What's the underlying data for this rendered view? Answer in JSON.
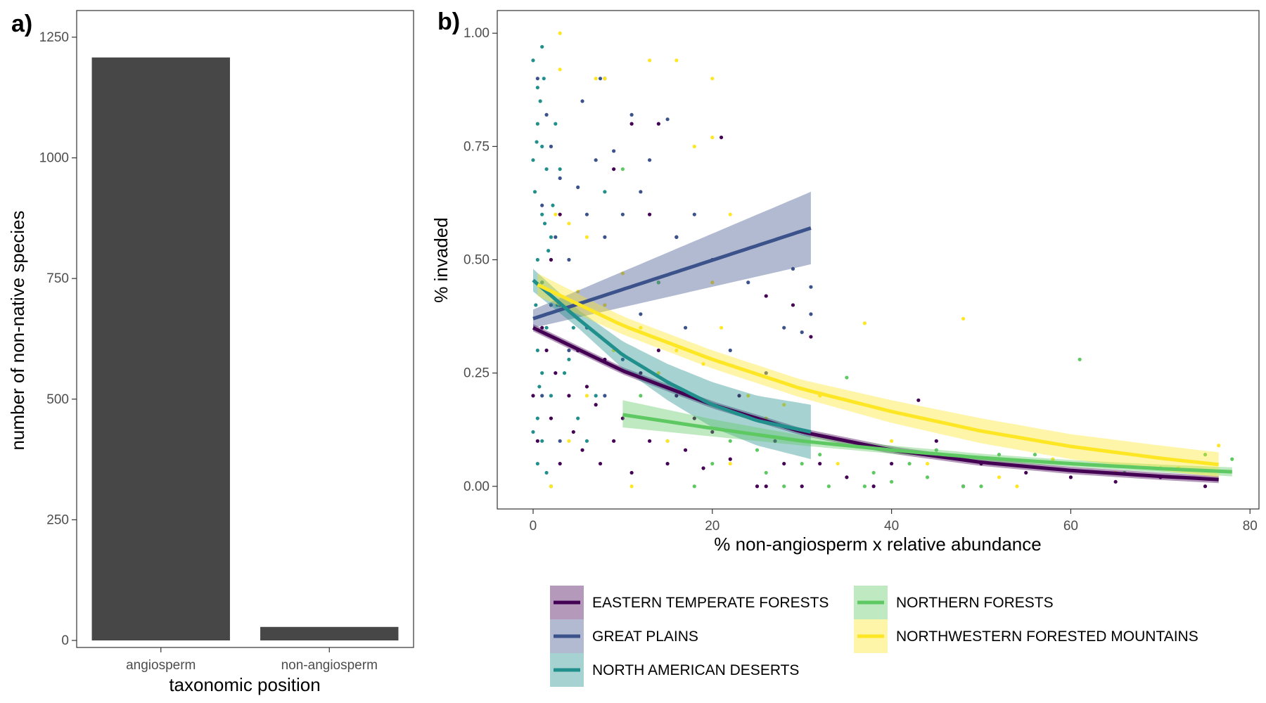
{
  "chart_data": [
    {
      "panel": "a)",
      "type": "bar",
      "xlabel": "taxonomic position",
      "ylabel": "number of non-native species",
      "ylim": [
        0,
        1300
      ],
      "yticks": [
        0,
        250,
        500,
        750,
        1000,
        1250
      ],
      "ytick_labels": [
        "0",
        "250",
        "500",
        "750",
        "1000",
        "1250"
      ],
      "categories": [
        "angiosperm",
        "non-angiosperm"
      ],
      "values": [
        1208,
        28
      ],
      "bar_color": "#474747",
      "grid": false
    },
    {
      "panel": "b)",
      "type": "scatter",
      "xlabel": "% non-angiosperm x relative abundance",
      "ylabel": "% invaded",
      "xlim": [
        -4,
        81
      ],
      "ylim": [
        -0.05,
        1.05
      ],
      "xticks": [
        0,
        20,
        40,
        60,
        80
      ],
      "xtick_labels": [
        "0",
        "20",
        "40",
        "60",
        "80"
      ],
      "yticks": [
        0,
        0.25,
        0.5,
        0.75,
        1.0
      ],
      "ytick_labels": [
        "0.00",
        "0.25",
        "0.50",
        "0.75",
        "1.00"
      ],
      "grid": false,
      "legend_position": "bottom",
      "series": [
        {
          "name": "EASTERN TEMPERATE FORESTS",
          "color": "#440154",
          "fit": {
            "x": [
              0,
              10,
              20,
              30,
              40,
              50,
              60,
              70,
              76.5
            ],
            "y": [
              0.35,
              0.255,
              0.18,
              0.12,
              0.08,
              0.053,
              0.035,
              0.022,
              0.015
            ]
          },
          "ci_width": 0.008,
          "points": [
            [
              0,
              0.2
            ],
            [
              0.5,
              0.1
            ],
            [
              1,
              0.35
            ],
            [
              1.5,
              0.3
            ],
            [
              2,
              0.15
            ],
            [
              2.5,
              0.25
            ],
            [
              3,
              0.05
            ],
            [
              3,
              0.4
            ],
            [
              4,
              0.2
            ],
            [
              4.5,
              0.12
            ],
            [
              5,
              0.3
            ],
            [
              5.5,
              0.08
            ],
            [
              6,
              0.22
            ],
            [
              7,
              0.18
            ],
            [
              7.5,
              0.05
            ],
            [
              8,
              0.28
            ],
            [
              9,
              0.1
            ],
            [
              10,
              0.15
            ],
            [
              11,
              0.03
            ],
            [
              12,
              0.25
            ],
            [
              13,
              0.1
            ],
            [
              14,
              0.3
            ],
            [
              15,
              0.05
            ],
            [
              16,
              0.2
            ],
            [
              17,
              0.08
            ],
            [
              18,
              0.15
            ],
            [
              19,
              0.04
            ],
            [
              20,
              0.12
            ],
            [
              22,
              0.06
            ],
            [
              23,
              0.2
            ],
            [
              25,
              0
            ],
            [
              26,
              0
            ],
            [
              27,
              0.1
            ],
            [
              28,
              0.05
            ],
            [
              30,
              0
            ],
            [
              32,
              0.05
            ],
            [
              35,
              0.02
            ],
            [
              38,
              0
            ],
            [
              40,
              0.05
            ],
            [
              43,
              0.19
            ],
            [
              45,
              0.1
            ],
            [
              48,
              0
            ],
            [
              50,
              0.05
            ],
            [
              55,
              0.03
            ],
            [
              60,
              0.02
            ],
            [
              65,
              0.01
            ],
            [
              70,
              0.02
            ],
            [
              75,
              0
            ],
            [
              1,
              0.45
            ],
            [
              2,
              0.5
            ],
            [
              3,
              0.6
            ],
            [
              8,
              0.9
            ],
            [
              11,
              0.8
            ],
            [
              14,
              0.8
            ],
            [
              9,
              0.7
            ],
            [
              13,
              0.6
            ],
            [
              16,
              0.55
            ],
            [
              21,
              0.77
            ],
            [
              26,
              0.42
            ],
            [
              29,
              0.4
            ],
            [
              31,
              0.33
            ]
          ]
        },
        {
          "name": "GREAT PLAINS",
          "color": "#3b528b",
          "fit": {
            "x": [
              0,
              31
            ],
            "y": [
              0.37,
              0.57
            ]
          },
          "ci_lo": [
            0.35,
            0.49
          ],
          "ci_hi": [
            0.39,
            0.65
          ],
          "points": [
            [
              0.5,
              0.9
            ],
            [
              1,
              0.62
            ],
            [
              1.5,
              0.82
            ],
            [
              2,
              0.75
            ],
            [
              2.5,
              0.55
            ],
            [
              3,
              0.68
            ],
            [
              4,
              0.5
            ],
            [
              5,
              0.66
            ],
            [
              5.5,
              0.85
            ],
            [
              6,
              0.6
            ],
            [
              7,
              0.72
            ],
            [
              7.5,
              0.9
            ],
            [
              8,
              0.55
            ],
            [
              9,
              0.74
            ],
            [
              10,
              0.6
            ],
            [
              11,
              0.82
            ],
            [
              12,
              0.65
            ],
            [
              13,
              0.72
            ],
            [
              14,
              0.45
            ],
            [
              15,
              0.81
            ],
            [
              16,
              0.55
            ],
            [
              17,
              0.35
            ],
            [
              18,
              0.6
            ],
            [
              20,
              0.5
            ],
            [
              22,
              0.3
            ],
            [
              24,
              0.45
            ],
            [
              26,
              0.25
            ],
            [
              28,
              0.35
            ],
            [
              29,
              0.48
            ],
            [
              30,
              0.34
            ],
            [
              31,
              0.38
            ],
            [
              31,
              0.44
            ],
            [
              2,
              0.4
            ],
            [
              4,
              0.3
            ],
            [
              6,
              0.35
            ],
            [
              8,
              0.2
            ],
            [
              10,
              0.28
            ],
            [
              12,
              0.38
            ],
            [
              1,
              0.2
            ],
            [
              3,
              0.1
            ]
          ]
        },
        {
          "name": "NORTH AMERICAN DESERTS",
          "color": "#21908d",
          "fit": {
            "x": [
              0,
              5,
              10,
              15,
              20,
              25,
              31
            ],
            "y": [
              0.455,
              0.37,
              0.29,
              0.23,
              0.18,
              0.145,
              0.12
            ]
          },
          "ci_lo": [
            0.43,
            0.35,
            0.26,
            0.19,
            0.13,
            0.09,
            0.06
          ],
          "ci_hi": [
            0.48,
            0.39,
            0.32,
            0.27,
            0.23,
            0.2,
            0.18
          ],
          "points": [
            [
              0,
              0.94
            ],
            [
              0.5,
              0.88
            ],
            [
              1,
              0.97
            ],
            [
              0.5,
              0.8
            ],
            [
              1,
              0.75
            ],
            [
              1.5,
              0.7
            ],
            [
              0.2,
              0.65
            ],
            [
              1,
              0.6
            ],
            [
              2,
              0.55
            ],
            [
              0.5,
              0.5
            ],
            [
              1,
              0.45
            ],
            [
              0.3,
              0.4
            ],
            [
              1.5,
              0.35
            ],
            [
              0.5,
              0.3
            ],
            [
              1,
              0.25
            ],
            [
              2,
              0.2
            ],
            [
              0.5,
              0.15
            ],
            [
              1,
              0.1
            ],
            [
              0.5,
              0.05
            ],
            [
              1.5,
              0.03
            ],
            [
              2,
              0
            ],
            [
              0.8,
              0.85
            ],
            [
              1.2,
              0.9
            ],
            [
              2.5,
              0.8
            ],
            [
              3,
              0.7
            ],
            [
              0,
              0.72
            ],
            [
              0.7,
              0.22
            ],
            [
              1.7,
              0.52
            ],
            [
              2.2,
              0.62
            ],
            [
              2.7,
              0.4
            ],
            [
              4,
              0.28
            ],
            [
              5,
              0.15
            ],
            [
              6,
              0.1
            ],
            [
              7,
              0.2
            ],
            [
              8,
              0.65
            ],
            [
              0,
              0.12
            ],
            [
              1.3,
              0.58
            ],
            [
              0.4,
              0.76
            ],
            [
              3.5,
              0.25
            ],
            [
              4.5,
              0.35
            ]
          ]
        },
        {
          "name": "NORTHERN FORESTS",
          "color": "#5ec962",
          "fit": {
            "x": [
              10,
              20,
              30,
              40,
              50,
              60,
              70,
              78
            ],
            "y": [
              0.158,
              0.128,
              0.1,
              0.08,
              0.063,
              0.05,
              0.039,
              0.032
            ]
          },
          "ci_lo": [
            0.13,
            0.11,
            0.09,
            0.072,
            0.056,
            0.043,
            0.031,
            0.022
          ],
          "ci_hi": [
            0.19,
            0.148,
            0.112,
            0.09,
            0.072,
            0.058,
            0.048,
            0.042
          ],
          "points": [
            [
              10,
              0.7
            ],
            [
              12,
              0.2
            ],
            [
              15,
              0.1
            ],
            [
              18,
              0
            ],
            [
              20,
              0.05
            ],
            [
              25,
              0.08
            ],
            [
              28,
              0
            ],
            [
              30,
              0.05
            ],
            [
              33,
              0
            ],
            [
              35,
              0.24
            ],
            [
              37,
              0
            ],
            [
              40,
              0.01
            ],
            [
              42,
              0.05
            ],
            [
              45,
              0.08
            ],
            [
              48,
              0
            ],
            [
              50,
              0
            ],
            [
              52,
              0.07
            ],
            [
              56,
              0.07
            ],
            [
              61,
              0.28
            ],
            [
              66,
              0.03
            ],
            [
              70,
              0.04
            ],
            [
              75,
              0.07
            ],
            [
              78,
              0.06
            ],
            [
              14,
              0.45
            ],
            [
              22,
              0.1
            ],
            [
              26,
              0.03
            ],
            [
              32,
              0.07
            ],
            [
              38,
              0.03
            ],
            [
              44,
              0.02
            ]
          ]
        },
        {
          "name": "NORTHWESTERN FORESTED MOUNTAINS",
          "color": "#fde725",
          "fit": {
            "x": [
              0.5,
              10,
              20,
              30,
              40,
              50,
              60,
              70,
              76.5
            ],
            "y": [
              0.445,
              0.355,
              0.28,
              0.215,
              0.165,
              0.122,
              0.088,
              0.062,
              0.048
            ]
          },
          "ci_lo": [
            0.42,
            0.335,
            0.26,
            0.195,
            0.14,
            0.095,
            0.06,
            0.035,
            0.02
          ],
          "ci_hi": [
            0.47,
            0.375,
            0.3,
            0.235,
            0.19,
            0.15,
            0.115,
            0.09,
            0.075
          ],
          "points": [
            [
              3,
              1.0
            ],
            [
              7,
              0.9
            ],
            [
              8,
              0.9
            ],
            [
              13,
              0.94
            ],
            [
              16,
              0.94
            ],
            [
              20,
              0.9
            ],
            [
              20,
              0.77
            ],
            [
              18,
              0.75
            ],
            [
              3,
              0.92
            ],
            [
              2.5,
              0.6
            ],
            [
              4,
              0.58
            ],
            [
              5,
              0.43
            ],
            [
              6,
              0.55
            ],
            [
              8,
              0.4
            ],
            [
              10,
              0.47
            ],
            [
              12,
              0.35
            ],
            [
              14,
              0.25
            ],
            [
              16,
              0.3
            ],
            [
              20,
              0.45
            ],
            [
              21,
              0.35
            ],
            [
              22,
              0.6
            ],
            [
              24,
              0.2
            ],
            [
              26,
              0.15
            ],
            [
              28,
              0.18
            ],
            [
              30,
              0.1
            ],
            [
              32,
              0.2
            ],
            [
              34,
              0.05
            ],
            [
              37,
              0.36
            ],
            [
              40,
              0.1
            ],
            [
              44,
              0.05
            ],
            [
              48,
              0.37
            ],
            [
              52,
              0.02
            ],
            [
              54,
              0
            ],
            [
              58,
              0.06
            ],
            [
              65,
              0.03
            ],
            [
              72,
              0.04
            ],
            [
              76.5,
              0.09
            ],
            [
              2,
              0
            ],
            [
              4,
              0.1
            ],
            [
              6,
              0.2
            ],
            [
              9,
              0.3
            ],
            [
              11,
              0
            ],
            [
              15,
              0.1
            ],
            [
              19,
              0.27
            ],
            [
              22,
              0.05
            ]
          ]
        }
      ],
      "legend_columns": [
        [
          "EASTERN TEMPERATE FORESTS",
          "GREAT PLAINS",
          "NORTH AMERICAN DESERTS"
        ],
        [
          "NORTHERN FORESTS",
          "NORTHWESTERN FORESTED MOUNTAINS"
        ]
      ]
    }
  ]
}
